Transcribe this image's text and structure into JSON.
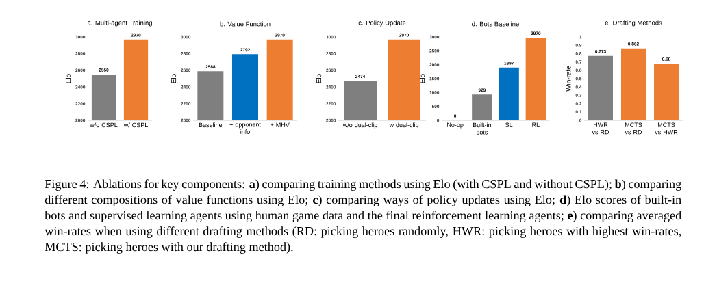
{
  "chart_data": [
    {
      "type": "bar",
      "title": "a. Multi-agent Training",
      "ylabel": "Elo",
      "categories": [
        "w/o CSPL",
        "w/ CSPL"
      ],
      "values": [
        2550,
        2970
      ],
      "colors": [
        "#7f7f7f",
        "#ed7d31"
      ],
      "ylim": [
        2000,
        3000
      ],
      "yticks": [
        2000,
        2200,
        2400,
        2600,
        2800,
        3000
      ],
      "data_labels": true
    },
    {
      "type": "bar",
      "title": "b. Value Function",
      "ylabel": "Elo",
      "categories": [
        "Baseline",
        "+ opponent info",
        "+ MHV"
      ],
      "values": [
        2588,
        2792,
        2970
      ],
      "colors": [
        "#7f7f7f",
        "#0070c0",
        "#ed7d31"
      ],
      "ylim": [
        2000,
        3000
      ],
      "yticks": [
        2000,
        2200,
        2400,
        2600,
        2800,
        3000
      ],
      "data_labels": true
    },
    {
      "type": "bar",
      "title": "c. Policy Update",
      "ylabel": "Elo",
      "categories": [
        "w/o dual-clip",
        "w dual-clip"
      ],
      "values": [
        2474,
        2970
      ],
      "colors": [
        "#7f7f7f",
        "#ed7d31"
      ],
      "ylim": [
        2000,
        3000
      ],
      "yticks": [
        2000,
        2200,
        2400,
        2600,
        2800,
        3000
      ],
      "data_labels": true
    },
    {
      "type": "bar",
      "title": "d. Bots Baseline",
      "ylabel": "Elo",
      "categories": [
        "No-op",
        "Built-in bots",
        "SL",
        "RL"
      ],
      "values": [
        0,
        929,
        1897,
        2970
      ],
      "colors": [
        "#7f7f7f",
        "#7f7f7f",
        "#0070c0",
        "#ed7d31"
      ],
      "ylim": [
        0,
        3000
      ],
      "yticks": [
        0,
        500,
        1000,
        1500,
        2000,
        2500,
        3000
      ],
      "data_labels": true
    },
    {
      "type": "bar",
      "title": "e. Drafting Methods",
      "ylabel": "Win-rate",
      "categories": [
        "HWR vs RD",
        "MCTS vs RD",
        "MCTS vs HWR"
      ],
      "values": [
        0.773,
        0.862,
        0.68
      ],
      "colors": [
        "#7f7f7f",
        "#ed7d31",
        "#ed7d31"
      ],
      "ylim": [
        0,
        1
      ],
      "yticks": [
        0,
        0.1,
        0.2,
        0.3,
        0.4,
        0.5,
        0.6,
        0.7,
        0.8,
        0.9,
        1
      ],
      "data_labels": true
    },
    {
      "type": "other",
      "annotations": [
        "Figure 4: Ablations for key components: **a**) comparing training methods using Elo (with CSPL and without CSPL); **b**) comparing different compositions of value functions using Elo; **c**) comparing ways of policy updates using Elo; **d**) Elo scores of built-in bots and supervised learning agents using human game data and the final reinforcement learning agents; **e**) comparing averaged win-rates when using different drafting methods (RD: picking heroes randomly, HWR: picking heroes with highest win-rates, MCTS: picking heroes with our drafting method)."
      ]
    }
  ]
}
